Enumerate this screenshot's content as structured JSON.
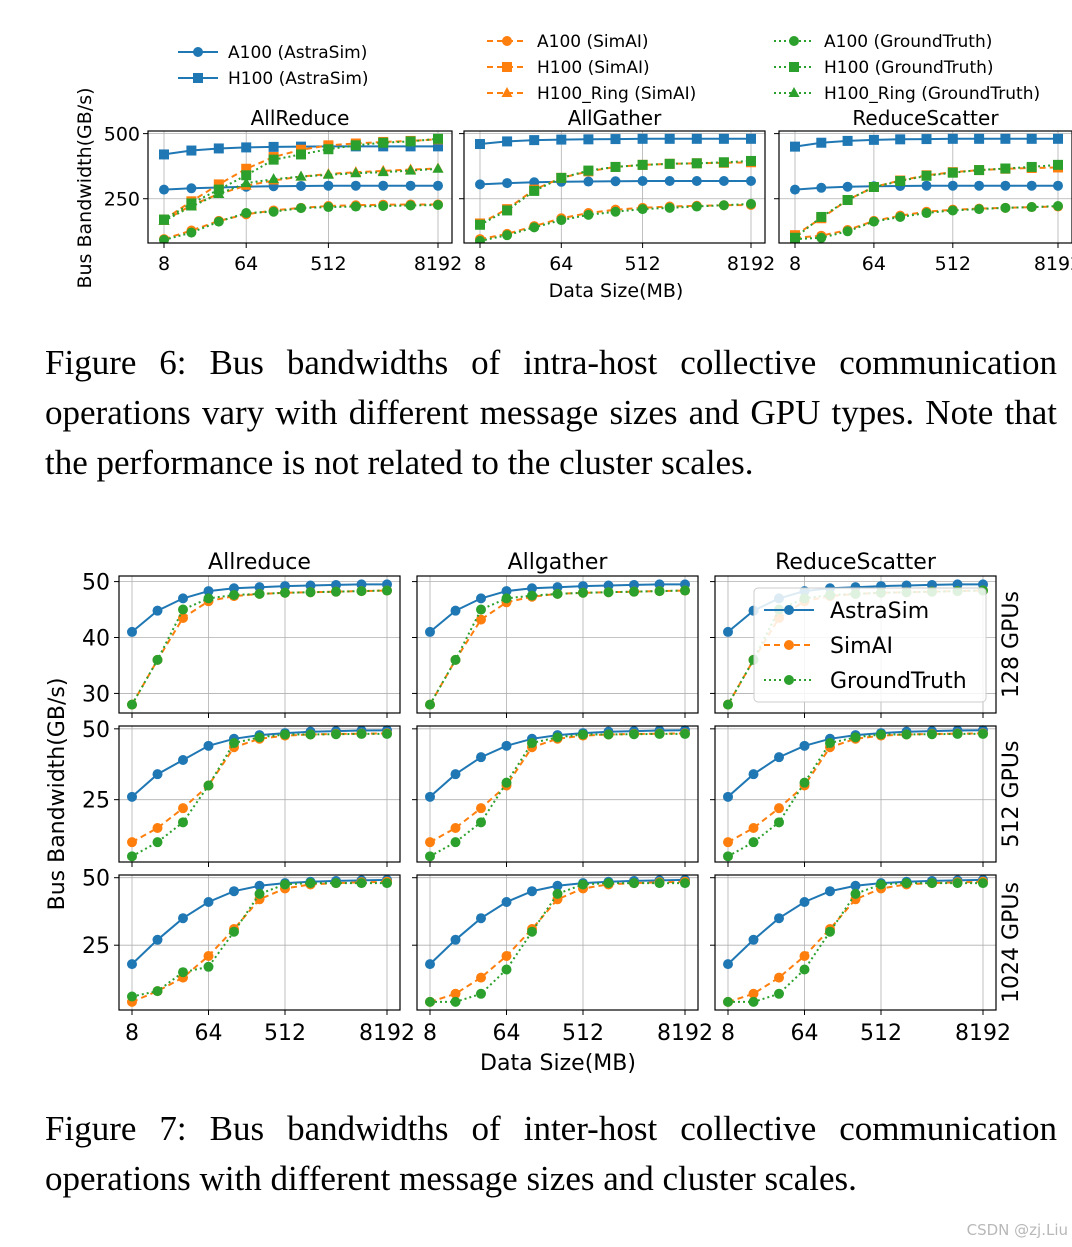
{
  "colors": {
    "astrasim": "#1f77b4",
    "simai": "#ff7f0e",
    "groundtruth": "#2ca02c",
    "grid": "#b0b0b0"
  },
  "fig6": {
    "caption": "Figure 6: Bus bandwidths of intra-host collective communication operations vary with different message sizes and GPU types. Note that the performance is not related to the cluster scales.",
    "ylabel": "Bus Bandwidth(GB/s)",
    "xlabel": "Data Size(MB)"
  },
  "fig7": {
    "caption": "Figure 7: Bus bandwidths of inter-host collective communication operations with different message sizes and cluster scales.",
    "ylabel": "Bus Bandwidth(GB/s)",
    "xlabel": "Data Size(MB)"
  },
  "watermark": "CSDN @zj.Liu",
  "chart_data": [
    {
      "id": "fig6",
      "type": "line",
      "title": "Figure 6",
      "xscale": "log2",
      "x_mb": [
        8,
        16,
        32,
        64,
        128,
        256,
        512,
        1024,
        2048,
        4096,
        8192
      ],
      "xticks": [
        "8",
        "64",
        "512",
        "8192"
      ],
      "ylim": [
        80,
        510
      ],
      "yticks": [
        "250",
        "500"
      ],
      "legend": [
        {
          "label": "A100 (AstraSim)",
          "series": "a100_astrasim"
        },
        {
          "label": "H100 (AstraSim)",
          "series": "h100_astrasim"
        },
        {
          "label": "A100 (SimAI)",
          "series": "a100_simai"
        },
        {
          "label": "H100 (SimAI)",
          "series": "h100_simai"
        },
        {
          "label": "H100_Ring (SimAI)",
          "series": "h100ring_simai"
        },
        {
          "label": "A100 (GroundTruth)",
          "series": "a100_gt"
        },
        {
          "label": "H100 (GroundTruth)",
          "series": "h100_gt"
        },
        {
          "label": "H100_Ring (GroundTruth)",
          "series": "h100ring_gt"
        }
      ],
      "series_style": {
        "a100_astrasim": {
          "color": "astrasim",
          "dash": "solid",
          "marker": "circle"
        },
        "h100_astrasim": {
          "color": "astrasim",
          "dash": "solid",
          "marker": "square"
        },
        "a100_simai": {
          "color": "simai",
          "dash": "dashed",
          "marker": "circle"
        },
        "h100_simai": {
          "color": "simai",
          "dash": "dashed",
          "marker": "square"
        },
        "h100ring_simai": {
          "color": "simai",
          "dash": "dashed",
          "marker": "triangle"
        },
        "a100_gt": {
          "color": "groundtruth",
          "dash": "dotted",
          "marker": "circle"
        },
        "h100_gt": {
          "color": "groundtruth",
          "dash": "dotted",
          "marker": "square"
        },
        "h100ring_gt": {
          "color": "groundtruth",
          "dash": "dotted",
          "marker": "triangle"
        }
      },
      "panels": [
        {
          "title": "AllReduce",
          "series": {
            "a100_astrasim": [
              285,
              290,
              293,
              296,
              298,
              299,
              300,
              300,
              300,
              300,
              300
            ],
            "h100_astrasim": [
              420,
              435,
              443,
              447,
              449,
              450,
              451,
              451,
              451,
              451,
              451
            ],
            "a100_simai": [
              95,
              128,
              165,
              190,
              205,
              215,
              222,
              225,
              227,
              228,
              228
            ],
            "h100_simai": [
              170,
              240,
              305,
              365,
              410,
              438,
              455,
              462,
              468,
              472,
              478
            ],
            "h100ring_simai": [
              165,
              225,
              268,
              300,
              320,
              335,
              345,
              352,
              357,
              362,
              366
            ],
            "a100_gt": [
              92,
              120,
              162,
              195,
              200,
              214,
              218,
              220,
              222,
              224,
              226
            ],
            "h100_gt": [
              170,
              232,
              285,
              340,
              400,
              420,
              440,
              455,
              465,
              470,
              480
            ],
            "h100ring_gt": [
              165,
              220,
              268,
              310,
              325,
              335,
              342,
              348,
              352,
              358,
              365
            ]
          }
        },
        {
          "title": "AllGather",
          "series": {
            "a100_astrasim": [
              305,
              310,
              313,
              315,
              316,
              317,
              318,
              318,
              318,
              318,
              318
            ],
            "h100_astrasim": [
              460,
              470,
              475,
              477,
              478,
              479,
              480,
              480,
              480,
              480,
              480
            ],
            "a100_simai": [
              95,
              115,
              145,
              175,
              195,
              208,
              215,
              220,
              223,
              225,
              226
            ],
            "h100_simai": [
              155,
              210,
              285,
              330,
              355,
              372,
              380,
              384,
              386,
              388,
              390
            ],
            "a100_gt": [
              88,
              110,
              140,
              168,
              188,
              200,
              210,
              215,
              220,
              225,
              230
            ],
            "h100_gt": [
              150,
              205,
              280,
              330,
              358,
              372,
              380,
              384,
              386,
              390,
              395
            ]
          }
        },
        {
          "title": "ReduceScatter",
          "series": {
            "a100_astrasim": [
              285,
              292,
              296,
              298,
              299,
              300,
              300,
              300,
              300,
              300,
              300
            ],
            "h100_astrasim": [
              450,
              465,
              472,
              476,
              478,
              479,
              480,
              480,
              480,
              480,
              480
            ],
            "a100_simai": [
              100,
              108,
              130,
              165,
              185,
              200,
              208,
              212,
              215,
              218,
              220
            ],
            "h100_simai": [
              110,
              175,
              245,
              295,
              320,
              340,
              352,
              360,
              365,
              368,
              370
            ],
            "a100_gt": [
              95,
              100,
              125,
              162,
              180,
              195,
              205,
              210,
              215,
              218,
              222
            ],
            "h100_gt": [
              100,
              180,
              245,
              295,
              318,
              338,
              350,
              360,
              366,
              372,
              380
            ]
          }
        }
      ]
    },
    {
      "id": "fig7",
      "type": "line",
      "title": "Figure 7",
      "xscale": "log2",
      "x_mb": [
        8,
        16,
        32,
        64,
        128,
        256,
        512,
        1024,
        2048,
        4096,
        8192
      ],
      "xticks": [
        "8",
        "64",
        "512",
        "8192"
      ],
      "columns": [
        "Allreduce",
        "Allgather",
        "ReduceScatter"
      ],
      "rows": [
        {
          "label": "128 GPUs",
          "ylim": [
            26.5,
            51
          ],
          "yticks": [
            "30",
            "40",
            "50"
          ]
        },
        {
          "label": "512 GPUs",
          "ylim": [
            3,
            51
          ],
          "yticks": [
            "25",
            "50"
          ]
        },
        {
          "label": "1024 GPUs",
          "ylim": [
            1,
            51
          ],
          "yticks": [
            "25",
            "50"
          ]
        }
      ],
      "legend": [
        {
          "label": "AstraSim",
          "series": "astrasim"
        },
        {
          "label": "SimAI",
          "series": "simai"
        },
        {
          "label": "GroundTruth",
          "series": "groundtruth"
        }
      ],
      "legend_panel": "row 1, ReduceScatter",
      "panels": [
        [
          {
            "astrasim": [
              41,
              44.8,
              47,
              48.3,
              48.8,
              49,
              49.2,
              49.3,
              49.4,
              49.5,
              49.5
            ],
            "simai": [
              28,
              36,
              43.5,
              46.5,
              47.4,
              47.8,
              48,
              48.1,
              48.2,
              48.3,
              48.4
            ],
            "groundtruth": [
              28,
              36,
              45,
              47,
              47.6,
              47.8,
              48,
              48.1,
              48.2,
              48.3,
              48.4
            ]
          },
          {
            "astrasim": [
              41,
              44.8,
              47,
              48.3,
              48.8,
              49,
              49.2,
              49.3,
              49.4,
              49.5,
              49.5
            ],
            "simai": [
              28,
              36,
              43.2,
              46.3,
              47.3,
              47.8,
              48,
              48.1,
              48.2,
              48.3,
              48.4
            ],
            "groundtruth": [
              28,
              36,
              45,
              47,
              47.5,
              47.8,
              48,
              48.1,
              48.2,
              48.3,
              48.4
            ]
          },
          {
            "astrasim": [
              41,
              44.8,
              47,
              48.3,
              48.8,
              49,
              49.2,
              49.3,
              49.4,
              49.5,
              49.5
            ],
            "simai": [
              28,
              36,
              43.5,
              46.5,
              47.4,
              47.8,
              48,
              48.1,
              48.2,
              48.3,
              48.4
            ],
            "groundtruth": [
              28,
              36,
              45,
              47,
              47.6,
              47.8,
              48,
              48.1,
              48.2,
              48.3,
              48.4
            ]
          }
        ],
        [
          {
            "astrasim": [
              26,
              34,
              39,
              44,
              46.5,
              47.8,
              48.5,
              49,
              49.2,
              49.4,
              49.5
            ],
            "simai": [
              10,
              15,
              22,
              30,
              43.5,
              46.5,
              47.6,
              48,
              48.2,
              48.3,
              48.4
            ],
            "groundtruth": [
              5,
              10,
              17,
              30,
              45,
              47,
              48,
              48,
              48.1,
              48.2,
              48.2
            ]
          },
          {
            "astrasim": [
              26,
              34,
              40,
              44,
              46.5,
              47.8,
              48.5,
              49,
              49.2,
              49.4,
              49.5
            ],
            "simai": [
              10,
              15,
              22,
              30,
              43.5,
              46.5,
              47.6,
              48,
              48.2,
              48.3,
              48.4
            ],
            "groundtruth": [
              5,
              10,
              17,
              31,
              45,
              47,
              48,
              48,
              48.1,
              48.2,
              48.2
            ]
          },
          {
            "astrasim": [
              26,
              34,
              40,
              44,
              46.5,
              47.8,
              48.5,
              49,
              49.2,
              49.4,
              49.5
            ],
            "simai": [
              10,
              15,
              22,
              30,
              43.5,
              46.5,
              47.6,
              48,
              48.2,
              48.3,
              48.4
            ],
            "groundtruth": [
              5,
              10,
              17,
              31,
              45,
              47,
              48,
              48,
              48.1,
              48.2,
              48.2
            ]
          }
        ],
        [
          {
            "astrasim": [
              18,
              27,
              35,
              41,
              45,
              47,
              48,
              48.5,
              48.8,
              49,
              49.2
            ],
            "simai": [
              4,
              8,
              13,
              21,
              31,
              42,
              46,
              47.5,
              48,
              48.3,
              48.5
            ],
            "groundtruth": [
              6,
              8,
              15,
              17,
              30,
              44,
              47.5,
              48,
              48,
              48,
              48
            ]
          },
          {
            "astrasim": [
              18,
              27,
              35,
              41,
              45,
              47,
              48,
              48.5,
              48.8,
              49,
              49.2
            ],
            "simai": [
              4,
              7,
              13,
              21,
              31,
              42,
              46,
              47.5,
              48,
              48.3,
              48.5
            ],
            "groundtruth": [
              4,
              4,
              7,
              16,
              30,
              44,
              47.5,
              48,
              48,
              48,
              48
            ]
          },
          {
            "astrasim": [
              18,
              27,
              35,
              41,
              45,
              47,
              48,
              48.5,
              48.8,
              49,
              49.2
            ],
            "simai": [
              4,
              7,
              13,
              21,
              31,
              42,
              46,
              47.5,
              48,
              48.3,
              48.5
            ],
            "groundtruth": [
              4,
              4,
              7,
              16,
              30,
              44,
              47.5,
              48,
              48,
              48,
              48
            ]
          }
        ]
      ]
    }
  ]
}
